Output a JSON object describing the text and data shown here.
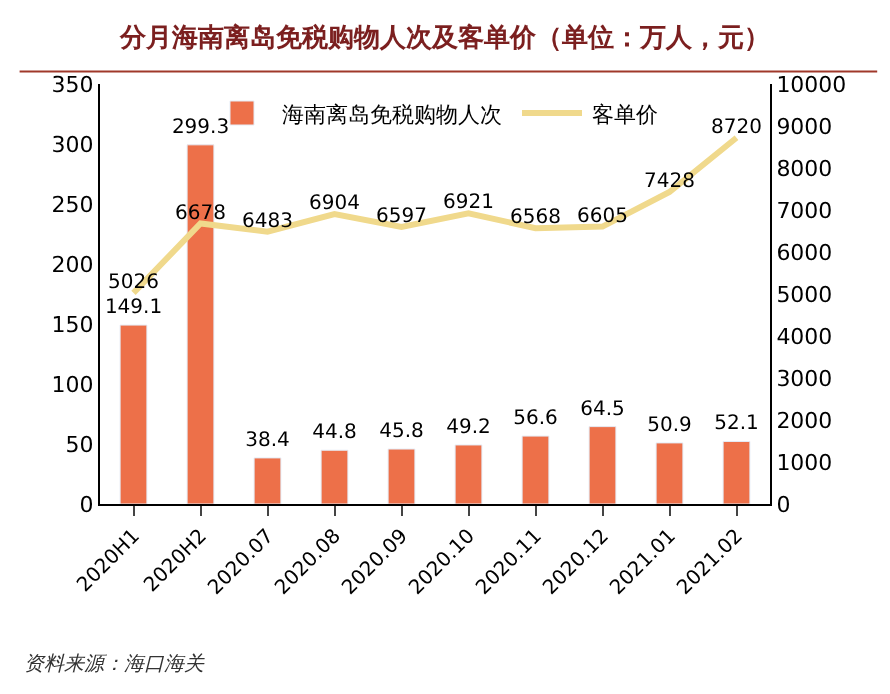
{
  "chart_data": {
    "type": "bar",
    "title": "分月海南离岛免税购物人次及客单价（单位：万人，元）",
    "categories": [
      "2020H1",
      "2020H2",
      "2020.07",
      "2020.08",
      "2020.09",
      "2020.10",
      "2020.11",
      "2020.12",
      "2021.01",
      "2021.02"
    ],
    "series": [
      {
        "name": "海南离岛免税购物人次",
        "color": "#ed7049",
        "values": [
          149.1,
          299.3,
          38.4,
          44.8,
          45.8,
          49.2,
          56.6,
          64.5,
          50.9,
          52.1
        ]
      },
      {
        "name": "客单价",
        "type": "line",
        "axis": "y2",
        "color": "#f0d98c",
        "values": [
          5026,
          6678,
          6483,
          6904,
          6597,
          6921,
          6568,
          6605,
          7428,
          8720
        ]
      }
    ],
    "ylim": [
      0,
      350
    ],
    "yticks": [
      0,
      50,
      100,
      150,
      200,
      250,
      300,
      350
    ],
    "y2lim": [
      0,
      10000
    ],
    "y2ticks": [
      0,
      1000,
      2000,
      3000,
      4000,
      5000,
      6000,
      7000,
      8000,
      9000,
      10000
    ],
    "data_labels": true,
    "legend": "top",
    "annotations": [
      "资料来源：海口海关"
    ]
  }
}
